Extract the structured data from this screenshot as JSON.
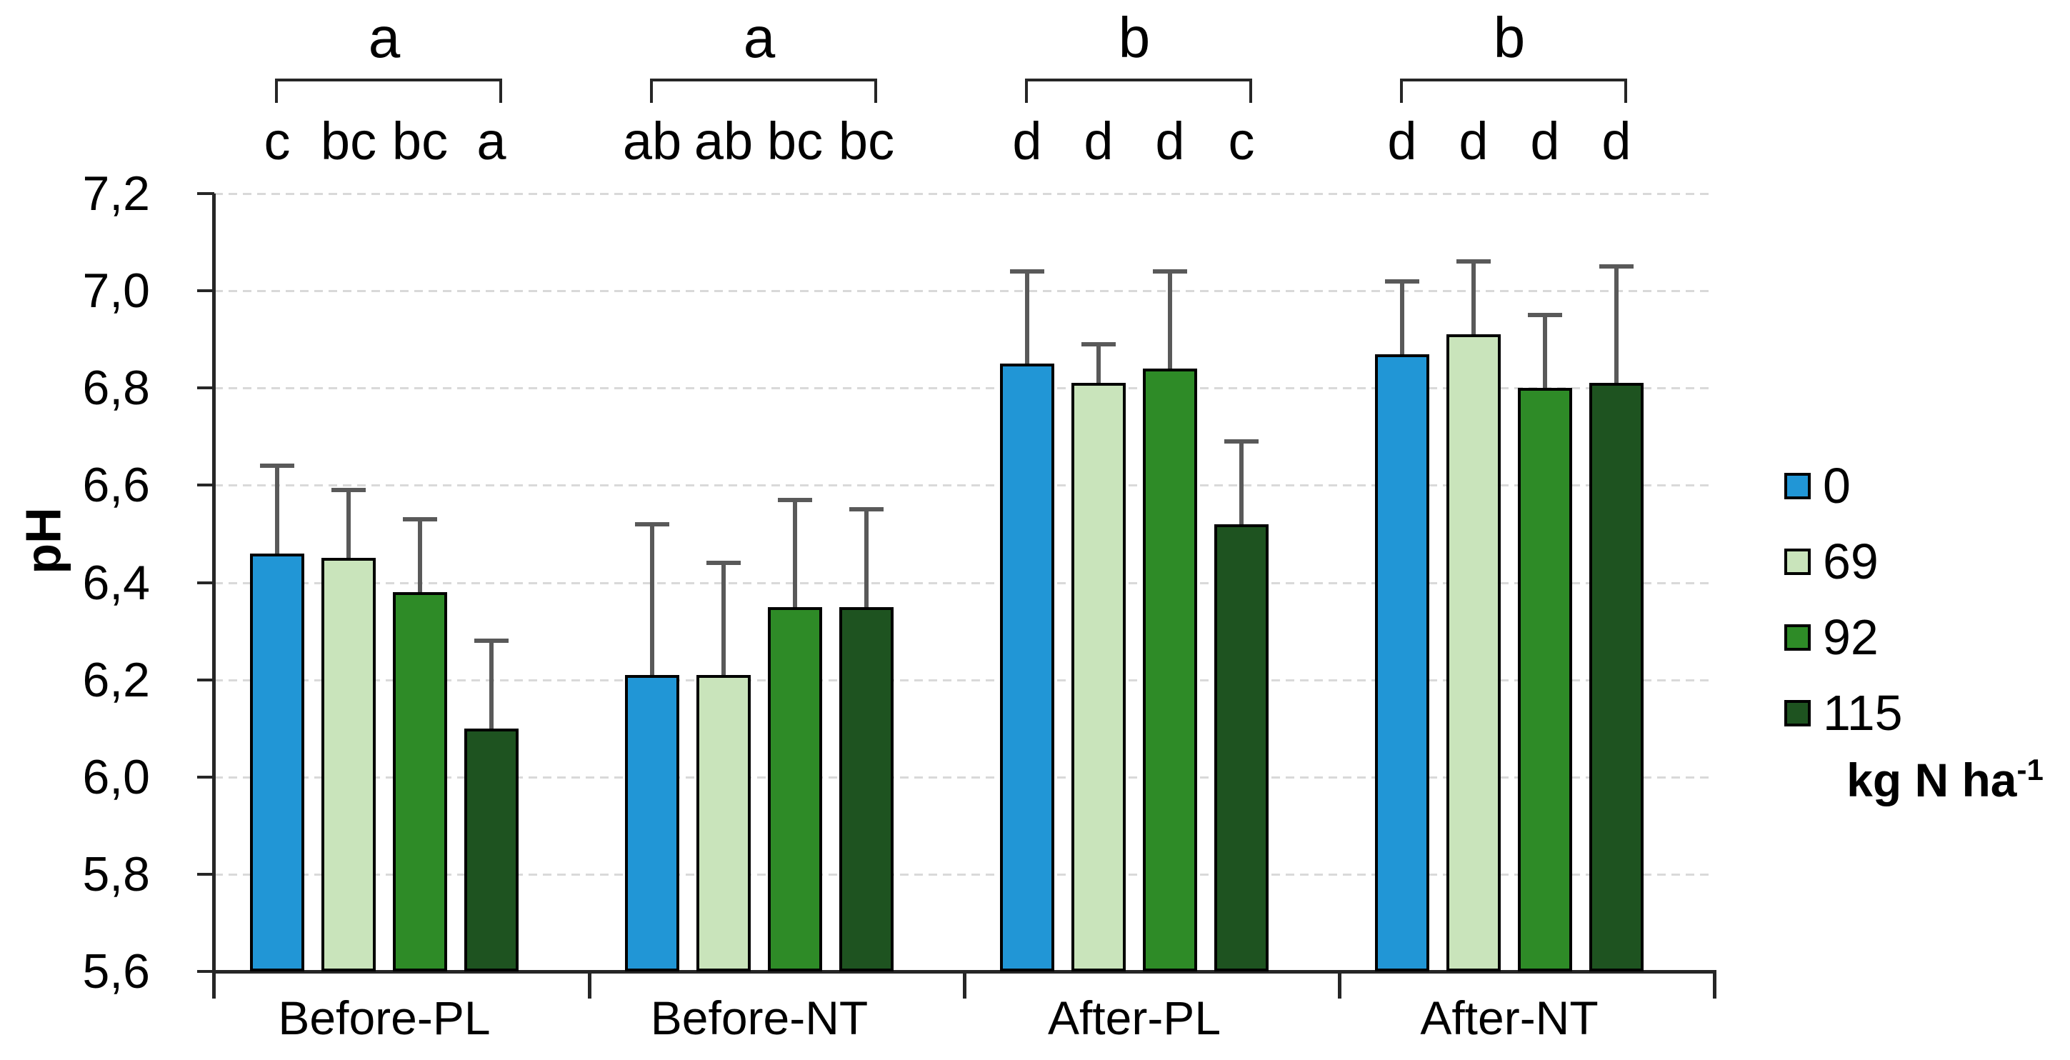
{
  "chart_data": {
    "type": "bar",
    "title": "",
    "xlabel": "",
    "ylabel": "pH",
    "categories": [
      "Before-PL",
      "Before-NT",
      "After-PL",
      "After-NT"
    ],
    "group_significance_letters": [
      "a",
      "a",
      "b",
      "b"
    ],
    "series": [
      {
        "name": "0",
        "color": "#2196D6",
        "values": [
          6.46,
          6.21,
          6.85,
          6.87
        ],
        "error_up": [
          0.18,
          0.31,
          0.19,
          0.15
        ],
        "sig_letters": [
          "c",
          "ab",
          "d",
          "d"
        ]
      },
      {
        "name": "69",
        "color": "#C9E4BB",
        "values": [
          6.45,
          6.21,
          6.81,
          6.91
        ],
        "error_up": [
          0.14,
          0.23,
          0.08,
          0.15
        ],
        "sig_letters": [
          "bc",
          "ab",
          "d",
          "d"
        ]
      },
      {
        "name": "92",
        "color": "#2E8B27",
        "values": [
          6.38,
          6.35,
          6.84,
          6.8
        ],
        "error_up": [
          0.15,
          0.22,
          0.2,
          0.15
        ],
        "sig_letters": [
          "bc",
          "bc",
          "d",
          "d"
        ]
      },
      {
        "name": "115",
        "color": "#1E5320",
        "values": [
          6.1,
          6.35,
          6.52,
          6.81
        ],
        "error_up": [
          0.18,
          0.2,
          0.17,
          0.24
        ],
        "sig_letters": [
          "a",
          "bc",
          "c",
          "d"
        ]
      }
    ],
    "ylim": [
      5.6,
      7.2
    ],
    "ytick_step": 0.2,
    "ytick_labels": [
      "7,2",
      "7,0",
      "6,8",
      "6,6",
      "6,4",
      "6,2",
      "6,0",
      "5,8",
      "5,6"
    ],
    "decimal_separator": ",",
    "grid": "horizontal-dashed",
    "legend_position": "right",
    "legend_labels": [
      "0",
      "69",
      "92",
      "115"
    ],
    "legend_title": "kg N ha⁻¹",
    "colors": {
      "axis": "#262626",
      "gridline": "#D9D9D9",
      "error_bar": "#595959",
      "bar_border": "#000000"
    }
  },
  "legend": {
    "title_main": "kg N ha",
    "title_sup": "-1"
  }
}
